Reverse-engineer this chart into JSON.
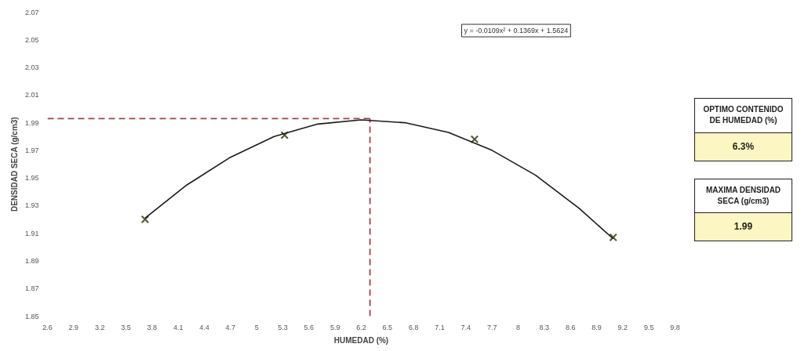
{
  "chart_data": {
    "type": "scatter",
    "xlabel": "HUMEDAD (%)",
    "ylabel": "DENSIDAD SECA (g/cm3)",
    "xlim": [
      2.6,
      9.8
    ],
    "ylim": [
      1.85,
      2.07
    ],
    "xticks": [
      2.6,
      2.9,
      3.2,
      3.5,
      3.8,
      4.1,
      4.4,
      4.7,
      5,
      5.3,
      5.6,
      5.9,
      6.2,
      6.5,
      6.8,
      7.1,
      7.4,
      7.7,
      8,
      8.3,
      8.6,
      8.9,
      9.2,
      9.5,
      9.8
    ],
    "yticks": [
      1.85,
      1.87,
      1.89,
      1.91,
      1.93,
      1.95,
      1.97,
      1.99,
      2.01,
      2.03,
      2.05,
      2.07
    ],
    "grid": false,
    "marker": "cross",
    "series": [
      {
        "color": "#4b5a32",
        "x": [
          3.72,
          5.32,
          7.5,
          9.09
        ],
        "values": [
          1.92,
          1.981,
          1.978,
          1.907
        ]
      },
      {
        "type": "line",
        "color": "#1a1a1a",
        "marker": "none",
        "x": [
          3.72,
          4.2,
          4.7,
          5.2,
          5.7,
          6.2,
          6.7,
          7.2,
          7.7,
          8.2,
          8.7,
          9.09
        ],
        "values": [
          1.921,
          1.945,
          1.965,
          1.98,
          1.989,
          1.992,
          1.99,
          1.983,
          1.97,
          1.952,
          1.928,
          1.906
        ]
      }
    ],
    "ref_lines": [
      {
        "axis": "y",
        "value": 1.993,
        "color": "#a3404e",
        "line_style": "dashed"
      },
      {
        "axis": "x",
        "value": 6.3,
        "color": "#a3404e",
        "line_style": "dashed"
      }
    ],
    "annotations": [
      "y = -0.0109x² + 0.1369x + 1.5624",
      "OPTIMO CONTENIDO DE HUMEDAD (%)",
      "6.3%",
      "MAXIMA DENSIDAD SECA (g/cm3)",
      "1.99"
    ]
  }
}
